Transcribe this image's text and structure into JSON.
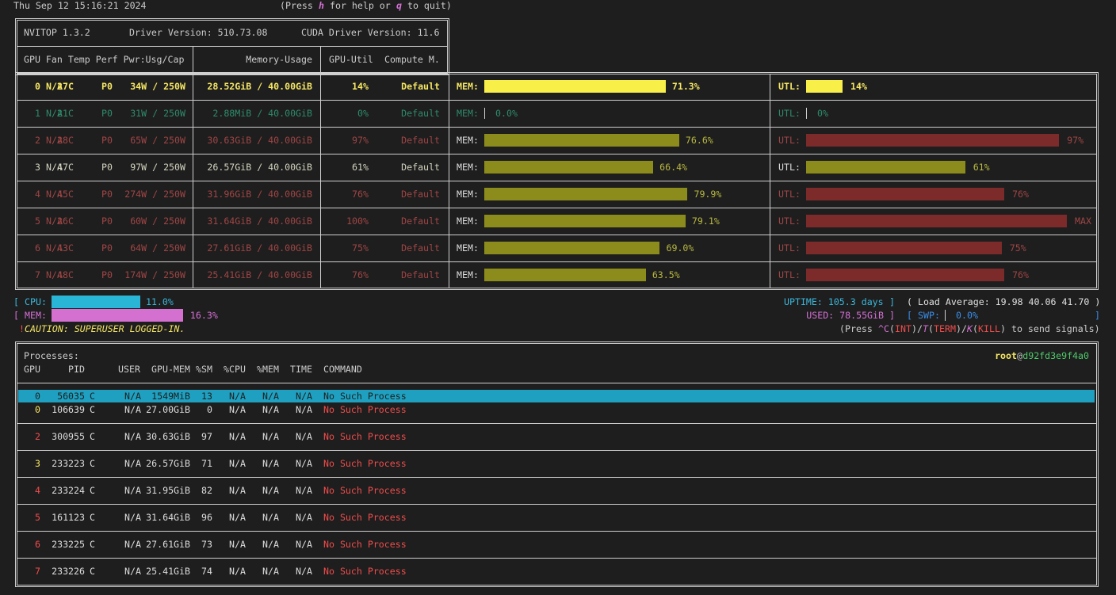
{
  "header": {
    "timestamp": "Thu Sep 12 15:16:21 2024",
    "help": [
      "(Press ",
      "h",
      " for help or ",
      "q",
      " to quit)"
    ]
  },
  "device_table": {
    "title": "NVITOP 1.3.2",
    "driver": "Driver Version: 510.73.08",
    "cuda": "CUDA Driver Version: 11.6",
    "headers": [
      "GPU Fan Temp Perf Pwr:Usg/Cap",
      "Memory-Usage",
      "GPU-Util",
      "Compute M."
    ],
    "mem_label": "MEM:",
    "util_label": "UTL:",
    "rows": [
      {
        "gpu": "0",
        "fan": "N/A",
        "temp": "27C",
        "perf": "P0",
        "power": "34W / 250W",
        "memory": "28.52GiB / 40.00GiB",
        "util": "14%",
        "compute": "Default",
        "mem_pct": "71.3%",
        "util_bar": "14%"
      },
      {
        "gpu": "1",
        "fan": "N/A",
        "temp": "21C",
        "perf": "P0",
        "power": "31W / 250W",
        "memory": "2.88MiB / 40.00GiB",
        "util": "0%",
        "compute": "Default",
        "mem_pct": "0.0%",
        "util_bar": "0%"
      },
      {
        "gpu": "2",
        "fan": "N/A",
        "temp": "28C",
        "perf": "P0",
        "power": "65W / 250W",
        "memory": "30.63GiB / 40.00GiB",
        "util": "97%",
        "compute": "Default",
        "mem_pct": "76.6%",
        "util_bar": "97%"
      },
      {
        "gpu": "3",
        "fan": "N/A",
        "temp": "47C",
        "perf": "P0",
        "power": "97W / 250W",
        "memory": "26.57GiB / 40.00GiB",
        "util": "61%",
        "compute": "Default",
        "mem_pct": "66.4%",
        "util_bar": "61%"
      },
      {
        "gpu": "4",
        "fan": "N/A",
        "temp": "45C",
        "perf": "P0",
        "power": "274W / 250W",
        "memory": "31.96GiB / 40.00GiB",
        "util": "76%",
        "compute": "Default",
        "mem_pct": "79.9%",
        "util_bar": "76%"
      },
      {
        "gpu": "5",
        "fan": "N/A",
        "temp": "26C",
        "perf": "P0",
        "power": "60W / 250W",
        "memory": "31.64GiB / 40.00GiB",
        "util": "100%",
        "compute": "Default",
        "mem_pct": "79.1%",
        "util_bar": "MAX"
      },
      {
        "gpu": "6",
        "fan": "N/A",
        "temp": "43C",
        "perf": "P0",
        "power": "64W / 250W",
        "memory": "27.61GiB / 40.00GiB",
        "util": "75%",
        "compute": "Default",
        "mem_pct": "69.0%",
        "util_bar": "75%"
      },
      {
        "gpu": "7",
        "fan": "N/A",
        "temp": "48C",
        "perf": "P0",
        "power": "174W / 250W",
        "memory": "25.41GiB / 40.00GiB",
        "util": "76%",
        "compute": "Default",
        "mem_pct": "63.5%",
        "util_bar": "76%"
      }
    ]
  },
  "host": {
    "open": "[",
    "close": "]",
    "cpu_label": "CPU:",
    "cpu": "11.0%",
    "mem_label": "MEM:",
    "mem": "16.3%",
    "caution_mark": "!",
    "caution": "CAUTION: SUPERUSER LOGGED-IN.",
    "uptime": "UPTIME: 105.3 days",
    "load": "( Load Average: 19.98 40.06 41.70 )",
    "used": "USED: 78.55GiB",
    "swp_label": "SWP:",
    "swp": "0.0%",
    "signals": [
      "(Press ",
      "^C",
      "(",
      "INT",
      ")/",
      "T",
      "(",
      "TERM",
      ")/",
      "K",
      "(",
      "KILL",
      ") to send signals)"
    ]
  },
  "processes": {
    "title": "Processes:",
    "user": "root",
    "at": "@",
    "host": "d92fd3e9f4a0",
    "columns": [
      "GPU",
      "PID",
      "USER",
      "GPU-MEM",
      "%SM",
      "%CPU",
      "%MEM",
      "TIME",
      "COMMAND"
    ],
    "rows": [
      [
        "0",
        "56035",
        "C",
        "N/A",
        "1549MiB",
        "13",
        "N/A",
        "N/A",
        "N/A",
        "No Such Process"
      ],
      [
        "0",
        "106639",
        "C",
        "N/A",
        "27.00GiB",
        "0",
        "N/A",
        "N/A",
        "N/A",
        "No Such Process"
      ],
      [
        "2",
        "300955",
        "C",
        "N/A",
        "30.63GiB",
        "97",
        "N/A",
        "N/A",
        "N/A",
        "No Such Process"
      ],
      [
        "3",
        "233223",
        "C",
        "N/A",
        "26.57GiB",
        "71",
        "N/A",
        "N/A",
        "N/A",
        "No Such Process"
      ],
      [
        "4",
        "233224",
        "C",
        "N/A",
        "31.95GiB",
        "82",
        "N/A",
        "N/A",
        "N/A",
        "No Such Process"
      ],
      [
        "5",
        "161123",
        "C",
        "N/A",
        "31.64GiB",
        "96",
        "N/A",
        "N/A",
        "N/A",
        "No Such Process"
      ],
      [
        "6",
        "233225",
        "C",
        "N/A",
        "27.61GiB",
        "73",
        "N/A",
        "N/A",
        "N/A",
        "No Such Process"
      ],
      [
        "7",
        "233226",
        "C",
        "N/A",
        "25.41GiB",
        "74",
        "N/A",
        "N/A",
        "N/A",
        "No Such Process"
      ]
    ]
  }
}
